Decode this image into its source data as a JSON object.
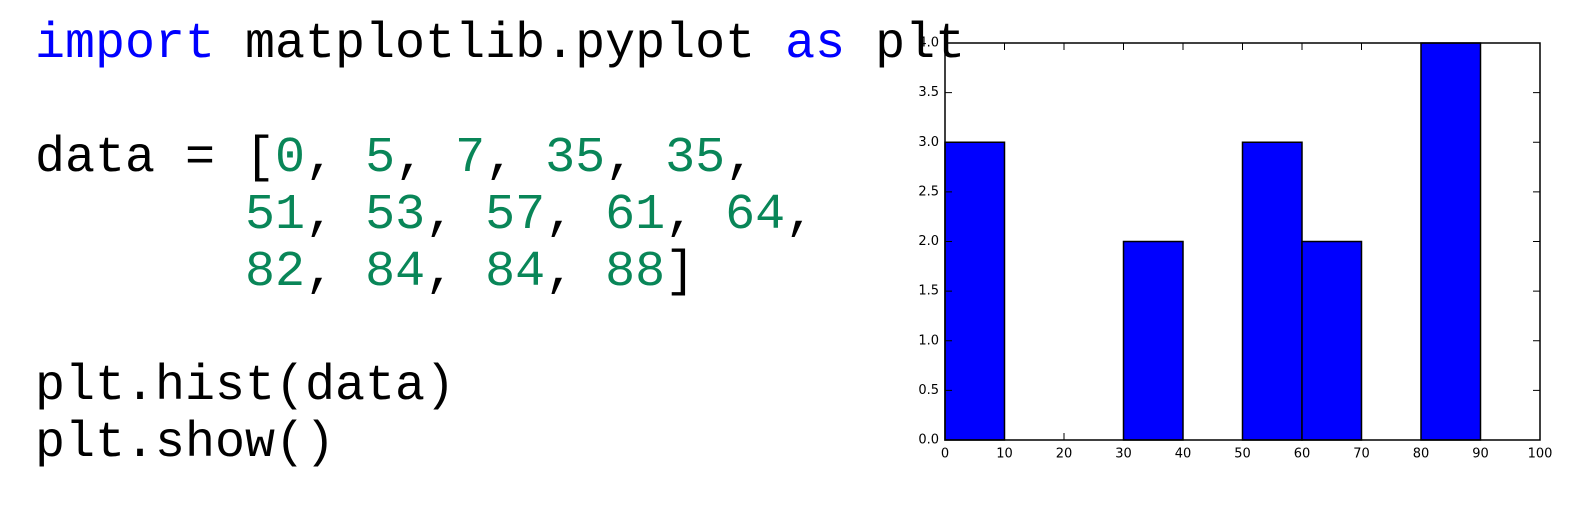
{
  "code": {
    "lines": [
      [
        {
          "text": "import",
          "color": "#0000ff"
        },
        {
          "text": " matplotlib.pyplot ",
          "color": "#000000"
        },
        {
          "text": "as",
          "color": "#0000ff"
        },
        {
          "text": " plt",
          "color": "#000000"
        }
      ],
      [],
      [
        {
          "text": "data = [",
          "color": "#000000"
        },
        {
          "text": "0",
          "color": "#098658"
        },
        {
          "text": ", ",
          "color": "#000000"
        },
        {
          "text": "5",
          "color": "#098658"
        },
        {
          "text": ", ",
          "color": "#000000"
        },
        {
          "text": "7",
          "color": "#098658"
        },
        {
          "text": ", ",
          "color": "#000000"
        },
        {
          "text": "35",
          "color": "#098658"
        },
        {
          "text": ", ",
          "color": "#000000"
        },
        {
          "text": "35",
          "color": "#098658"
        },
        {
          "text": ",",
          "color": "#000000"
        }
      ],
      [
        {
          "text": "       ",
          "color": "#000000"
        },
        {
          "text": "51",
          "color": "#098658"
        },
        {
          "text": ", ",
          "color": "#000000"
        },
        {
          "text": "53",
          "color": "#098658"
        },
        {
          "text": ", ",
          "color": "#000000"
        },
        {
          "text": "57",
          "color": "#098658"
        },
        {
          "text": ", ",
          "color": "#000000"
        },
        {
          "text": "61",
          "color": "#098658"
        },
        {
          "text": ", ",
          "color": "#000000"
        },
        {
          "text": "64",
          "color": "#098658"
        },
        {
          "text": ",",
          "color": "#000000"
        }
      ],
      [
        {
          "text": "       ",
          "color": "#000000"
        },
        {
          "text": "82",
          "color": "#098658"
        },
        {
          "text": ", ",
          "color": "#000000"
        },
        {
          "text": "84",
          "color": "#098658"
        },
        {
          "text": ", ",
          "color": "#000000"
        },
        {
          "text": "84",
          "color": "#098658"
        },
        {
          "text": ", ",
          "color": "#000000"
        },
        {
          "text": "88",
          "color": "#098658"
        },
        {
          "text": "]",
          "color": "#000000"
        }
      ],
      [],
      [
        {
          "text": "plt.hist(data)",
          "color": "#000000"
        }
      ],
      [
        {
          "text": "plt.show()",
          "color": "#000000"
        }
      ]
    ]
  },
  "chart_data": {
    "type": "histogram",
    "bins": [
      0,
      10,
      20,
      30,
      40,
      50,
      60,
      70,
      80,
      90
    ],
    "values": [
      3,
      0,
      0,
      2,
      0,
      3,
      2,
      0,
      4
    ],
    "color": "#0000ff",
    "xlim": [
      0,
      100
    ],
    "xticks": [
      0,
      10,
      20,
      30,
      40,
      50,
      60,
      70,
      80,
      90,
      100
    ],
    "ylim": [
      0,
      4
    ],
    "yticks": [
      {
        "value": 0,
        "label": "0.0"
      },
      0.5,
      {
        "value": 1,
        "label": "1.0"
      },
      1.5,
      {
        "value": 2,
        "label": "2.0"
      },
      2.5,
      {
        "value": 3,
        "label": "3.0"
      },
      3.5,
      {
        "value": 4,
        "label": "4.0"
      }
    ]
  }
}
